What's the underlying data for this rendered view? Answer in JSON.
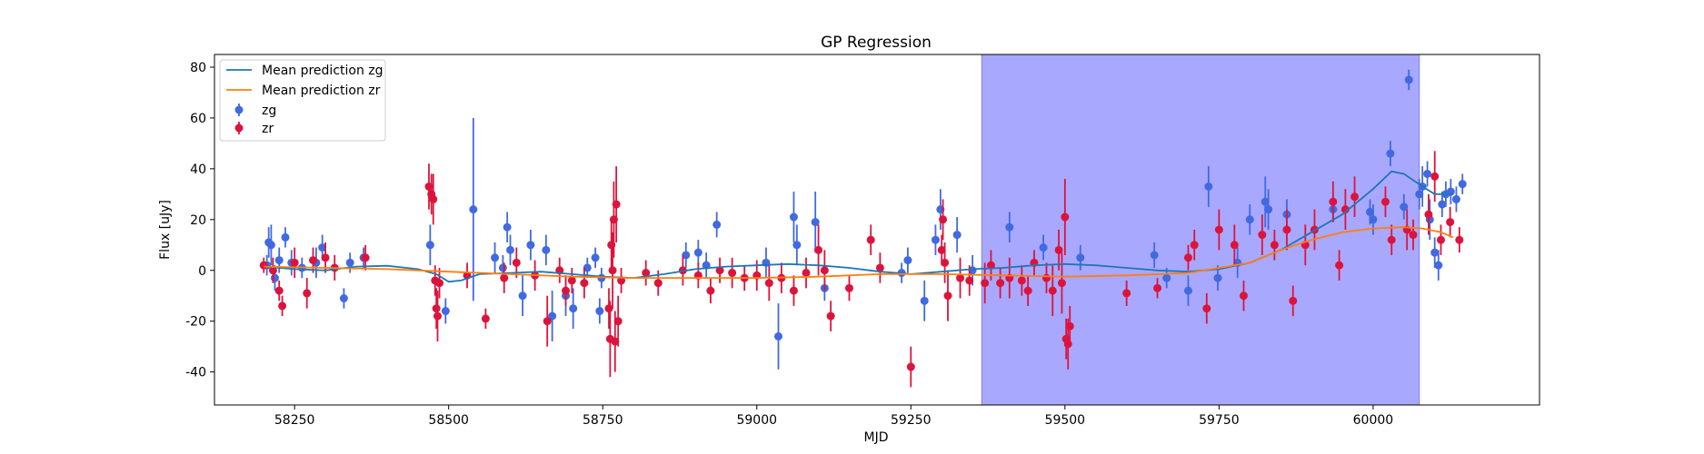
{
  "chart_data": {
    "type": "scatter",
    "title": "GP Regression",
    "xlabel": "MJD",
    "ylabel": "Flux [uJy]",
    "xlim": [
      58120,
      60270
    ],
    "ylim": [
      -53,
      85
    ],
    "xticks": [
      58250,
      58500,
      58750,
      59000,
      59250,
      59500,
      59750,
      60000
    ],
    "yticks": [
      -40,
      -20,
      0,
      20,
      40,
      60,
      80
    ],
    "grid": false,
    "legend_position": "top-left",
    "shaded_region": {
      "x_start": 59365,
      "x_end": 60075,
      "color": "#a8a8ff"
    },
    "colors": {
      "zg_line": "#1f77b4",
      "zr_line": "#ff7f0e",
      "zg_points": "#4169e1",
      "zr_points": "#dc143c"
    },
    "legend": [
      "Mean prediction zg",
      "Mean prediction zr",
      "zg",
      "zr"
    ],
    "series": [
      {
        "name": "Mean prediction zg",
        "kind": "line",
        "x": [
          58200,
          58250,
          58300,
          58350,
          58400,
          58450,
          58480,
          58500,
          58520,
          58550,
          58600,
          58650,
          58700,
          58750,
          58800,
          58850,
          58900,
          58950,
          59000,
          59050,
          59100,
          59150,
          59200,
          59250,
          59300,
          59350,
          59400,
          59450,
          59500,
          59550,
          59600,
          59650,
          59700,
          59750,
          59800,
          59850,
          59900,
          59950,
          60000,
          60030,
          60050,
          60080,
          60100,
          60130
        ],
        "y": [
          1.5,
          0.5,
          0.0,
          1.5,
          1.8,
          0.5,
          -1.5,
          -4.5,
          -4.0,
          -1.5,
          -1.0,
          -0.5,
          -1.5,
          -2.5,
          -3.0,
          -1.5,
          0.5,
          1.5,
          2.0,
          2.5,
          2.0,
          1.0,
          -0.5,
          -1.5,
          -0.5,
          0.5,
          1.0,
          2.0,
          2.5,
          2.0,
          1.0,
          0.0,
          -0.5,
          0.5,
          3.0,
          8.0,
          15.0,
          22.0,
          32.0,
          39.0,
          38.0,
          33.0,
          30.0,
          30.0
        ]
      },
      {
        "name": "Mean prediction zr",
        "kind": "line",
        "x": [
          58200,
          58300,
          58400,
          58500,
          58600,
          58700,
          58800,
          58900,
          59000,
          59100,
          59200,
          59300,
          59400,
          59500,
          59600,
          59700,
          59800,
          59850,
          59900,
          59950,
          60000,
          60050,
          60080,
          60110,
          60130
        ],
        "y": [
          1.5,
          1.0,
          0.5,
          -0.5,
          -1.5,
          -2.5,
          -3.0,
          -3.0,
          -3.0,
          -2.5,
          -1.5,
          -1.5,
          -2.0,
          -2.5,
          -2.0,
          -1.0,
          3.0,
          8.0,
          12.0,
          15.0,
          16.5,
          17.0,
          16.5,
          15.0,
          13.0
        ]
      },
      {
        "name": "zg",
        "kind": "errorbar",
        "points": [
          [
            58205,
            2,
            4
          ],
          [
            58208,
            11,
            6
          ],
          [
            58212,
            10,
            8
          ],
          [
            58218,
            -3,
            5
          ],
          [
            58225,
            4,
            5
          ],
          [
            58235,
            13,
            4
          ],
          [
            58245,
            3,
            5
          ],
          [
            58262,
            1,
            4
          ],
          [
            58285,
            3,
            6
          ],
          [
            58295,
            9,
            5
          ],
          [
            58330,
            -11,
            4
          ],
          [
            58340,
            3,
            4
          ],
          [
            58362,
            5,
            4
          ],
          [
            58470,
            10,
            8
          ],
          [
            58495,
            -16,
            5
          ],
          [
            58540,
            24,
            36
          ],
          [
            58575,
            5,
            6
          ],
          [
            58588,
            1,
            5
          ],
          [
            58595,
            17,
            6
          ],
          [
            58600,
            8,
            6
          ],
          [
            58620,
            -10,
            8
          ],
          [
            58633,
            10,
            6
          ],
          [
            58658,
            8,
            6
          ],
          [
            58668,
            -18,
            10
          ],
          [
            58690,
            -10,
            8
          ],
          [
            58702,
            -15,
            8
          ],
          [
            58725,
            1,
            4
          ],
          [
            58738,
            5,
            4
          ],
          [
            58745,
            -16,
            5
          ],
          [
            58748,
            -3,
            4
          ],
          [
            58885,
            6,
            5
          ],
          [
            58905,
            7,
            5
          ],
          [
            58918,
            2,
            5
          ],
          [
            58935,
            18,
            5
          ],
          [
            59015,
            3,
            6
          ],
          [
            59035,
            -26,
            13
          ],
          [
            59060,
            21,
            10
          ],
          [
            59065,
            10,
            8
          ],
          [
            59095,
            19,
            12
          ],
          [
            59110,
            -7,
            5
          ],
          [
            59235,
            -1,
            4
          ],
          [
            59245,
            4,
            5
          ],
          [
            59272,
            -12,
            8
          ],
          [
            59290,
            12,
            6
          ],
          [
            59298,
            24,
            8
          ],
          [
            59325,
            14,
            7
          ],
          [
            59350,
            0,
            6
          ],
          [
            59410,
            17,
            6
          ],
          [
            59465,
            9,
            5
          ],
          [
            59525,
            5,
            5
          ],
          [
            59645,
            6,
            5
          ],
          [
            59665,
            -3,
            4
          ],
          [
            59700,
            -8,
            6
          ],
          [
            59733,
            33,
            8
          ],
          [
            59748,
            -3,
            5
          ],
          [
            59780,
            3,
            6
          ],
          [
            59800,
            20,
            6
          ],
          [
            59825,
            27,
            10
          ],
          [
            59830,
            24,
            8
          ],
          [
            59860,
            22,
            6
          ],
          [
            59935,
            24,
            5
          ],
          [
            59995,
            23,
            5
          ],
          [
            60000,
            20,
            6
          ],
          [
            60028,
            46,
            5
          ],
          [
            60050,
            25,
            5
          ],
          [
            60058,
            75,
            4
          ],
          [
            60075,
            30,
            6
          ],
          [
            60080,
            33,
            8
          ],
          [
            60088,
            38,
            5
          ],
          [
            60092,
            20,
            8
          ],
          [
            60100,
            7,
            6
          ],
          [
            60106,
            2,
            6
          ],
          [
            60112,
            26,
            5
          ],
          [
            60118,
            30,
            5
          ],
          [
            60126,
            31,
            5
          ],
          [
            60135,
            28,
            5
          ],
          [
            60145,
            34,
            4
          ]
        ]
      },
      {
        "name": "zr",
        "kind": "errorbar",
        "points": [
          [
            58200,
            2,
            3
          ],
          [
            58215,
            0,
            5
          ],
          [
            58225,
            -8,
            4
          ],
          [
            58230,
            -14,
            4
          ],
          [
            58250,
            3,
            6
          ],
          [
            58270,
            -9,
            6
          ],
          [
            58280,
            4,
            5
          ],
          [
            58300,
            5,
            6
          ],
          [
            58315,
            1,
            5
          ],
          [
            58365,
            5,
            5
          ],
          [
            58468,
            33,
            9
          ],
          [
            58472,
            30,
            8
          ],
          [
            58475,
            28,
            10
          ],
          [
            58478,
            -4,
            6
          ],
          [
            58480,
            -15,
            8
          ],
          [
            58482,
            -18,
            10
          ],
          [
            58485,
            -5,
            6
          ],
          [
            58530,
            -2,
            5
          ],
          [
            58560,
            -19,
            4
          ],
          [
            58590,
            -3,
            6
          ],
          [
            58610,
            3,
            6
          ],
          [
            58640,
            -2,
            6
          ],
          [
            58660,
            -20,
            10
          ],
          [
            58680,
            0,
            5
          ],
          [
            58690,
            -8,
            6
          ],
          [
            58700,
            -4,
            5
          ],
          [
            58720,
            -5,
            6
          ],
          [
            58760,
            -15,
            8
          ],
          [
            58762,
            -27,
            15
          ],
          [
            58764,
            10,
            10
          ],
          [
            58766,
            0,
            15
          ],
          [
            58768,
            20,
            15
          ],
          [
            58770,
            -28,
            12
          ],
          [
            58772,
            26,
            15
          ],
          [
            58775,
            -20,
            10
          ],
          [
            58780,
            -4,
            5
          ],
          [
            58820,
            -1,
            5
          ],
          [
            58840,
            -5,
            5
          ],
          [
            58880,
            0,
            6
          ],
          [
            58905,
            -2,
            5
          ],
          [
            58925,
            -8,
            5
          ],
          [
            58940,
            0,
            5
          ],
          [
            58960,
            -1,
            6
          ],
          [
            58980,
            -3,
            5
          ],
          [
            59000,
            -2,
            6
          ],
          [
            59020,
            -5,
            7
          ],
          [
            59040,
            -3,
            6
          ],
          [
            59060,
            -8,
            6
          ],
          [
            59080,
            -1,
            6
          ],
          [
            59100,
            8,
            10
          ],
          [
            59110,
            0,
            8
          ],
          [
            59120,
            -18,
            6
          ],
          [
            59150,
            -7,
            5
          ],
          [
            59185,
            12,
            6
          ],
          [
            59200,
            1,
            6
          ],
          [
            59250,
            -38,
            8
          ],
          [
            59300,
            8,
            6
          ],
          [
            59302,
            20,
            8
          ],
          [
            59305,
            3,
            8
          ],
          [
            59310,
            -10,
            10
          ],
          [
            59330,
            -3,
            8
          ],
          [
            59345,
            -4,
            6
          ],
          [
            59370,
            -5,
            8
          ],
          [
            59380,
            2,
            6
          ],
          [
            59395,
            -5,
            6
          ],
          [
            59410,
            -3,
            8
          ],
          [
            59430,
            -4,
            6
          ],
          [
            59440,
            -8,
            6
          ],
          [
            59450,
            3,
            5
          ],
          [
            59470,
            -3,
            6
          ],
          [
            59480,
            -8,
            10
          ],
          [
            59490,
            8,
            8
          ],
          [
            59495,
            -5,
            12
          ],
          [
            59500,
            21,
            15
          ],
          [
            59502,
            -27,
            8
          ],
          [
            59505,
            -29,
            10
          ],
          [
            59508,
            -22,
            8
          ],
          [
            59600,
            -9,
            5
          ],
          [
            59650,
            -7,
            4
          ],
          [
            59700,
            5,
            5
          ],
          [
            59710,
            10,
            6
          ],
          [
            59730,
            -15,
            6
          ],
          [
            59750,
            16,
            8
          ],
          [
            59775,
            10,
            8
          ],
          [
            59790,
            -10,
            6
          ],
          [
            59820,
            14,
            8
          ],
          [
            59840,
            10,
            6
          ],
          [
            59860,
            16,
            8
          ],
          [
            59870,
            -12,
            6
          ],
          [
            59890,
            10,
            8
          ],
          [
            59905,
            16,
            8
          ],
          [
            59935,
            27,
            8
          ],
          [
            59945,
            2,
            6
          ],
          [
            59955,
            24,
            8
          ],
          [
            59970,
            29,
            8
          ],
          [
            60020,
            27,
            6
          ],
          [
            60030,
            12,
            6
          ],
          [
            60055,
            16,
            8
          ],
          [
            60065,
            14,
            6
          ],
          [
            60090,
            22,
            8
          ],
          [
            60100,
            37,
            10
          ],
          [
            60110,
            12,
            6
          ],
          [
            60125,
            19,
            6
          ],
          [
            60140,
            12,
            5
          ]
        ]
      }
    ]
  }
}
